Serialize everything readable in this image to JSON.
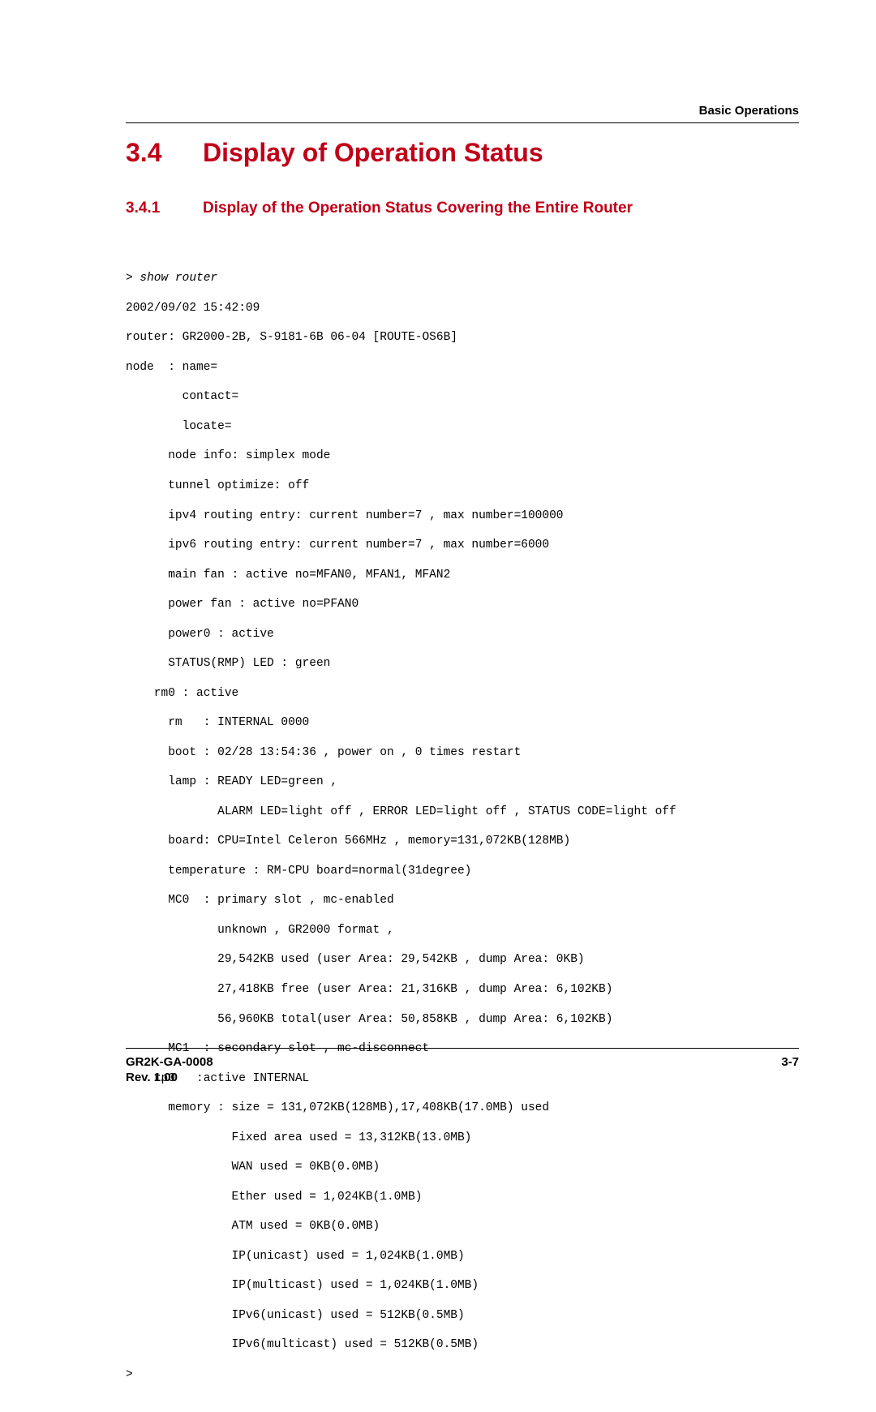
{
  "header": {
    "chapter_label": "Basic Operations"
  },
  "section": {
    "number": "3.4",
    "title": "Display of Operation Status"
  },
  "subsection": {
    "number": "3.4.1",
    "title": "Display of the Operation Status Covering the Entire Router"
  },
  "code": {
    "command": "> show router",
    "lines": [
      "2002/09/02 15:42:09",
      "router: GR2000-2B, S-9181-6B 06-04 [ROUTE-OS6B]",
      "node  : name=",
      "        contact=",
      "        locate=",
      "      node info: simplex mode",
      "      tunnel optimize: off",
      "      ipv4 routing entry: current number=7 , max number=100000",
      "      ipv6 routing entry: current number=7 , max number=6000",
      "      main fan : active no=MFAN0, MFAN1, MFAN2",
      "      power fan : active no=PFAN0",
      "      power0 : active",
      "      STATUS(RMP) LED : green",
      "    rm0 : active",
      "      rm   : INTERNAL 0000",
      "      boot : 02/28 13:54:36 , power on , 0 times restart",
      "      lamp : READY LED=green ,",
      "             ALARM LED=light off , ERROR LED=light off , STATUS CODE=light off",
      "      board: CPU=Intel Celeron 566MHz , memory=131,072KB(128MB)",
      "      temperature : RM-CPU board=normal(31degree)",
      "      MC0  : primary slot , mc-enabled",
      "             unknown , GR2000 format ,",
      "             29,542KB used (user Area: 29,542KB , dump Area: 0KB)",
      "             27,418KB free (user Area: 21,316KB , dump Area: 6,102KB)",
      "             56,960KB total(user Area: 50,858KB , dump Area: 6,102KB)",
      "      MC1  : secondary slot , mc-disconnect",
      "    rp0   :active INTERNAL",
      "      memory : size = 131,072KB(128MB),17,408KB(17.0MB) used",
      "               Fixed area used = 13,312KB(13.0MB)",
      "               WAN used = 0KB(0.0MB)",
      "               Ether used = 1,024KB(1.0MB)",
      "               ATM used = 0KB(0.0MB)",
      "               IP(unicast) used = 1,024KB(1.0MB)",
      "               IP(multicast) used = 1,024KB(1.0MB)",
      "               IPv6(unicast) used = 512KB(0.5MB)",
      "               IPv6(multicast) used = 512KB(0.5MB)",
      ">"
    ]
  },
  "footer": {
    "doc_id": "GR2K-GA-0008",
    "page_num": "3-7",
    "revision": "Rev. 1.00"
  },
  "colors": {
    "heading": "#c00018",
    "text": "#000000",
    "background": "#ffffff"
  },
  "typography": {
    "heading_font": "Arial",
    "code_font": "Courier New",
    "section_size_pt": 24,
    "subsection_size_pt": 14,
    "code_size_pt": 11,
    "footer_size_pt": 11
  }
}
